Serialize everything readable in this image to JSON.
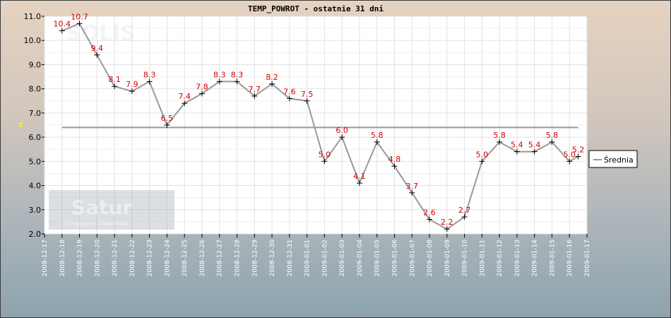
{
  "chart_data": {
    "type": "line",
    "title": "TEMP_POWROT - ostatnie 31 dni",
    "ylabel": "C",
    "ylim": [
      2.0,
      11.0
    ],
    "yticks": [
      "2.0",
      "3.0",
      "4.0",
      "5.0",
      "6.0",
      "7.0",
      "8.0",
      "9.0",
      "10.0",
      "11.0"
    ],
    "x": [
      "2008-12-17",
      "2008-12-18",
      "2008-12-19",
      "2008-12-20",
      "2008-12-21",
      "2008-12-22",
      "2008-12-23",
      "2008-12-24",
      "2008-12-25",
      "2008-12-26",
      "2008-12-27",
      "2008-12-28",
      "2008-12-29",
      "2008-12-30",
      "2008-12-31",
      "2009-01-01",
      "2009-01-02",
      "2009-01-03",
      "2009-01-04",
      "2009-01-05",
      "2009-01-06",
      "2009-01-07",
      "2009-01-08",
      "2009-01-09",
      "2009-01-10",
      "2009-01-11",
      "2009-01-12",
      "2009-01-13",
      "2009-01-14",
      "2009-01-15",
      "2009-01-16",
      "2009-01-17"
    ],
    "series": [
      {
        "x": [
          "2008-12-18",
          "2008-12-19",
          "2008-12-20",
          "2008-12-21",
          "2008-12-22",
          "2008-12-23",
          "2008-12-24",
          "2008-12-25",
          "2008-12-26",
          "2008-12-27",
          "2008-12-28",
          "2008-12-29",
          "2008-12-30",
          "2008-12-31",
          "2009-01-01",
          "2009-01-02",
          "2009-01-03",
          "2009-01-04",
          "2009-01-05",
          "2009-01-06",
          "2009-01-07",
          "2009-01-08",
          "2009-01-09",
          "2009-01-10",
          "2009-01-11",
          "2009-01-12",
          "2009-01-13",
          "2009-01-14",
          "2009-01-15",
          "2009-01-16",
          "2009-01-16T12"
        ],
        "values": [
          10.4,
          10.7,
          9.4,
          8.1,
          7.9,
          8.3,
          6.5,
          7.4,
          7.8,
          8.3,
          8.3,
          7.7,
          8.2,
          7.6,
          7.5,
          5.0,
          6.0,
          4.1,
          5.8,
          4.8,
          3.7,
          2.6,
          2.2,
          2.7,
          5.0,
          5.8,
          5.4,
          5.4,
          5.8,
          5.0,
          5.2
        ],
        "labels": [
          "10.4",
          "10.7",
          "9.4",
          "8.1",
          "7.9",
          "8.3",
          "6.5",
          "7.4",
          "7.8",
          "8.3",
          "8.3",
          "7.7",
          "8.2",
          "7.6",
          "7.5",
          "5.0",
          "6.0",
          "4.1",
          "5.8",
          "4.8",
          "3.7",
          "2.6",
          "2.2",
          "2.7",
          "5.0",
          "5.8",
          "5.4",
          "5.4",
          "5.8",
          "5.0",
          "5.2"
        ],
        "color": "#999999",
        "marker_color": "#000000",
        "label_color": "#d40000"
      },
      {
        "name": "Średnia",
        "constant": 6.4,
        "color": "#999999"
      }
    ],
    "grid": true,
    "legend_position": "right",
    "watermarks": [
      "SOLIS",
      "Satur",
      "Grzegorz Słowiński"
    ]
  }
}
